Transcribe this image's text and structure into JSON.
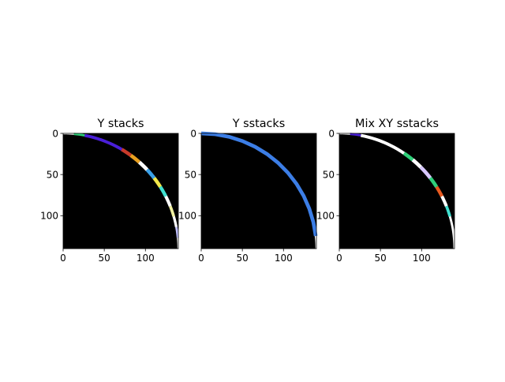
{
  "chart_data": [
    {
      "type": "heatmap",
      "title": "Y stacks",
      "xlim": [
        0,
        140
      ],
      "ylim": [
        140,
        0
      ],
      "xticks": [
        0,
        50,
        100
      ],
      "yticks": [
        0,
        50,
        100
      ],
      "background": "#000000",
      "arc": {
        "center": [
          0,
          140
        ],
        "radius": 140
      },
      "segments": [
        {
          "from": 0.0,
          "to": 0.06,
          "color": "#ffffff"
        },
        {
          "from": 0.06,
          "to": 0.12,
          "color": "#2fd07a"
        },
        {
          "from": 0.12,
          "to": 0.34,
          "color": "#4a1fd8"
        },
        {
          "from": 0.34,
          "to": 0.4,
          "color": "#c83a2a"
        },
        {
          "from": 0.4,
          "to": 0.46,
          "color": "#e8a020"
        },
        {
          "from": 0.46,
          "to": 0.52,
          "color": "#ffffff"
        },
        {
          "from": 0.52,
          "to": 0.58,
          "color": "#3aa0e8"
        },
        {
          "from": 0.58,
          "to": 0.64,
          "color": "#f2e84a"
        },
        {
          "from": 0.64,
          "to": 0.7,
          "color": "#40e0d0"
        },
        {
          "from": 0.7,
          "to": 0.76,
          "color": "#ffffff"
        },
        {
          "from": 0.76,
          "to": 0.82,
          "color": "#f0f0a0"
        },
        {
          "from": 0.82,
          "to": 0.88,
          "color": "#ffffff"
        },
        {
          "from": 0.88,
          "to": 0.94,
          "color": "#c0c0ff"
        },
        {
          "from": 0.94,
          "to": 1.0,
          "color": "#ffffff"
        }
      ]
    },
    {
      "type": "heatmap",
      "title": "Y sstacks",
      "xlim": [
        0,
        140
      ],
      "ylim": [
        140,
        0
      ],
      "xticks": [
        0,
        50,
        100
      ],
      "yticks": [
        0,
        50,
        100
      ],
      "background": "#000000",
      "arc": {
        "center": [
          0,
          140
        ],
        "radius": 140
      },
      "segments": [
        {
          "from": 0.0,
          "to": 0.93,
          "color": "#3c7ee6"
        },
        {
          "from": 0.93,
          "to": 1.0,
          "color": "#ffffff"
        }
      ]
    },
    {
      "type": "heatmap",
      "title": "Mix XY sstacks",
      "xlim": [
        0,
        140
      ],
      "ylim": [
        140,
        0
      ],
      "xticks": [
        0,
        50,
        100
      ],
      "yticks": [
        0,
        50,
        100
      ],
      "background": "#000000",
      "arc": {
        "center": [
          0,
          140
        ],
        "radius": 140
      },
      "segments": [
        {
          "from": 0.0,
          "to": 0.06,
          "color": "#ffffff"
        },
        {
          "from": 0.06,
          "to": 0.12,
          "color": "#4a1fd8"
        },
        {
          "from": 0.12,
          "to": 0.38,
          "color": "#ffffff"
        },
        {
          "from": 0.38,
          "to": 0.44,
          "color": "#2fd07a"
        },
        {
          "from": 0.44,
          "to": 0.5,
          "color": "#ffffff"
        },
        {
          "from": 0.5,
          "to": 0.58,
          "color": "#d8c8ff"
        },
        {
          "from": 0.58,
          "to": 0.64,
          "color": "#2fd07a"
        },
        {
          "from": 0.64,
          "to": 0.7,
          "color": "#e85a20"
        },
        {
          "from": 0.7,
          "to": 0.76,
          "color": "#ffffff"
        },
        {
          "from": 0.76,
          "to": 0.82,
          "color": "#40e0d0"
        },
        {
          "from": 0.82,
          "to": 1.0,
          "color": "#ffffff"
        }
      ]
    }
  ]
}
